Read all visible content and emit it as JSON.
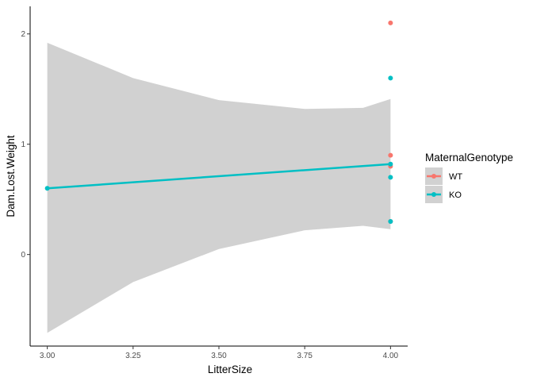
{
  "chart_data": {
    "type": "scatter",
    "xlabel": "LitterSize",
    "ylabel": "Dam.Lost.Weight",
    "xlim": [
      2.95,
      4.05
    ],
    "ylim": [
      -0.83,
      2.25
    ],
    "x_ticks": [
      3.0,
      3.25,
      3.5,
      3.75,
      4.0
    ],
    "x_tick_labels": [
      "3.00",
      "3.25",
      "3.50",
      "3.75",
      "4.00"
    ],
    "y_ticks": [
      0,
      1,
      2
    ],
    "y_tick_labels": [
      "0",
      "1",
      "2"
    ],
    "grid": false,
    "legend": {
      "title": "MaternalGenotype",
      "position": "right",
      "entries": [
        "WT",
        "KO"
      ]
    },
    "series": [
      {
        "name": "WT",
        "color": "#F8766D",
        "points": [
          [
            4,
            2.1
          ],
          [
            4,
            0.9
          ],
          [
            4,
            0.8
          ],
          [
            4,
            0.3
          ]
        ],
        "fit": null
      },
      {
        "name": "KO",
        "color": "#00BFC4",
        "points": [
          [
            3,
            0.6
          ],
          [
            4,
            1.6
          ],
          [
            4,
            0.82
          ],
          [
            4,
            0.7
          ],
          [
            4,
            0.3
          ]
        ],
        "fit": {
          "x": [
            3,
            4
          ],
          "y": [
            0.6,
            0.82
          ],
          "ribbon_x": [
            3.0,
            3.25,
            3.5,
            3.75,
            3.92,
            4.0
          ],
          "ribbon_lower": [
            -0.71,
            -0.25,
            0.05,
            0.22,
            0.26,
            0.23
          ],
          "ribbon_upper": [
            1.92,
            1.6,
            1.4,
            1.32,
            1.33,
            1.41
          ]
        }
      }
    ]
  }
}
